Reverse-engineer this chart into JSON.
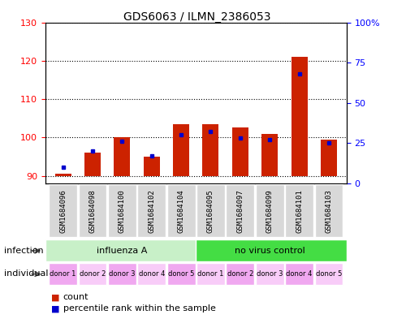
{
  "title": "GDS6063 / ILMN_2386053",
  "samples": [
    "GSM1684096",
    "GSM1684098",
    "GSM1684100",
    "GSM1684102",
    "GSM1684104",
    "GSM1684095",
    "GSM1684097",
    "GSM1684099",
    "GSM1684101",
    "GSM1684103"
  ],
  "counts": [
    90.5,
    96.0,
    100.0,
    95.0,
    103.5,
    103.5,
    102.5,
    101.0,
    121.0,
    99.5
  ],
  "percentiles": [
    10,
    20,
    26,
    17,
    30,
    32,
    28,
    27,
    68,
    25
  ],
  "ylim_left": [
    88,
    130
  ],
  "ylim_right": [
    0,
    100
  ],
  "yticks_left": [
    90,
    100,
    110,
    120,
    130
  ],
  "yticks_right": [
    0,
    25,
    50,
    75,
    100
  ],
  "infection_groups": [
    {
      "label": "influenza A",
      "start": 0,
      "end": 5,
      "color": "#c8f0c8"
    },
    {
      "label": "no virus control",
      "start": 5,
      "end": 10,
      "color": "#44dd44"
    }
  ],
  "individual_labels": [
    "donor 1",
    "donor 2",
    "donor 3",
    "donor 4",
    "donor 5",
    "donor 1",
    "donor 2",
    "donor 3",
    "donor 4",
    "donor 5"
  ],
  "ind_colors_alt": [
    "#f0b8f0",
    "#f8d0f8",
    "#f0b8f0",
    "#f8d0f8",
    "#f0b8f0",
    "#f8d0f8",
    "#f0b8f0",
    "#f8d0f8",
    "#f0b8f0",
    "#f8d0f8"
  ],
  "bar_color": "#cc2200",
  "dot_color": "#0000cc",
  "bar_bottom": 90,
  "bar_width": 0.55,
  "legend_count_color": "#cc2200",
  "legend_percentile_color": "#0000cc",
  "tick_label_bg": "#d0d0d0",
  "infection_label_left": "infection",
  "individual_label_left": "individual"
}
